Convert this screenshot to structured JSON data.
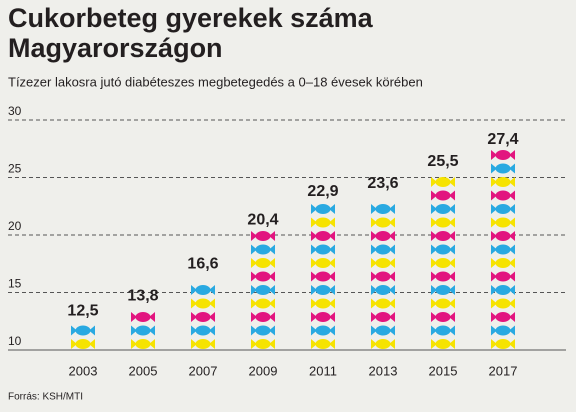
{
  "chart_data": {
    "type": "pictogram",
    "title": [
      "Cukorbeteg gyerekek száma",
      "Magyarországon"
    ],
    "subtitle": "Tízezer lakosra jutó diabéteszes megbetegedés a 0–18 évesek körében",
    "source": "Forrás: KSH/MTI",
    "categories": [
      "2003",
      "2005",
      "2007",
      "2009",
      "2011",
      "2013",
      "2015",
      "2017"
    ],
    "values": [
      12.5,
      13.8,
      16.6,
      20.4,
      22.9,
      23.6,
      25.5,
      27.4
    ],
    "value_labels": [
      "12,5",
      "13,8",
      "16,6",
      "20,4",
      "22,9",
      "23,6",
      "25,5",
      "27,4"
    ],
    "colors": [
      "#f6e300",
      "#29a9e1",
      "#e2157f"
    ],
    "ylim": [
      10,
      30
    ],
    "yticks": [
      10,
      15,
      20,
      25,
      30
    ],
    "grid": true
  }
}
